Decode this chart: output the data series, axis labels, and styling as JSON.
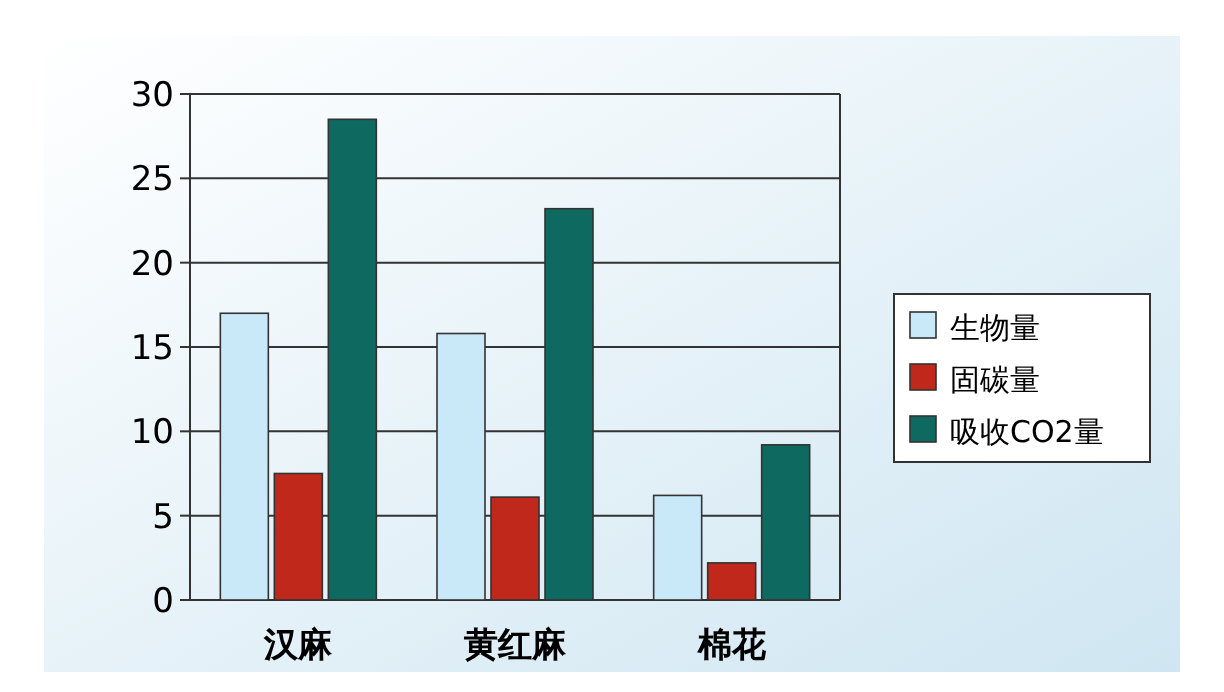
{
  "chart_data": {
    "type": "bar",
    "categories": [
      "汉麻",
      "黄红麻",
      "棉花"
    ],
    "series": [
      {
        "name": "生物量",
        "color": "#c9e8f8",
        "values": [
          17,
          15.8,
          6.2
        ]
      },
      {
        "name": "固碳量",
        "color": "#c0281c",
        "values": [
          7.5,
          6.1,
          2.2
        ]
      },
      {
        "name": "吸收CO2量",
        "color": "#0e6a60",
        "values": [
          28.5,
          23.2,
          9.2
        ]
      }
    ],
    "ylim": [
      0,
      30
    ],
    "yticks": [
      0,
      5,
      10,
      15,
      20,
      25,
      30
    ],
    "grid": "y",
    "legend": "right"
  }
}
